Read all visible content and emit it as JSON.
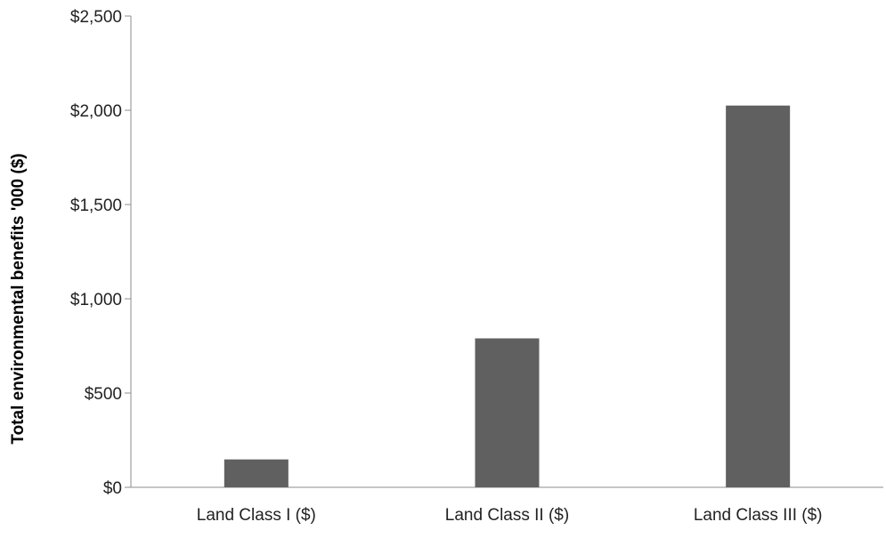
{
  "chart_data": {
    "type": "bar",
    "title": "",
    "xlabel": "",
    "ylabel": "Total environmental benefits '000 ($)",
    "categories": [
      "Land Class I ($)",
      "Land Class II ($)",
      "Land Class III ($)"
    ],
    "values": [
      148,
      790,
      2025
    ],
    "ylim": [
      0,
      2500
    ],
    "yticks": [
      0,
      500,
      1000,
      1500,
      2000,
      2500
    ],
    "ytick_labels": [
      "$0",
      "$500",
      "$1,000",
      "$1,500",
      "$2,000",
      "$2,500"
    ],
    "bar_color": "#606060",
    "grid": false,
    "legend": "none"
  }
}
